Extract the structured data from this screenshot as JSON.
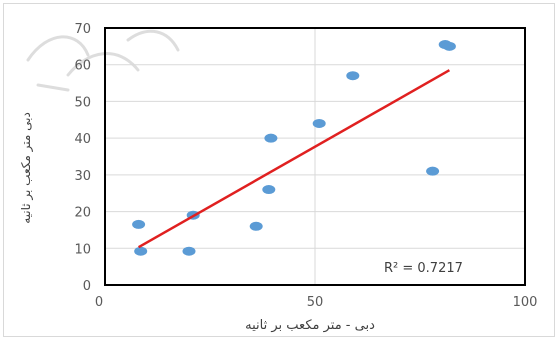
{
  "chart_data": {
    "type": "scatter",
    "xlabel": "دبی - متر مکعب بر ثانیه",
    "ylabel": "دبی متر مکعب بر ثانیه",
    "xlim": [
      0,
      100
    ],
    "ylim": [
      0,
      70
    ],
    "x_ticks": [
      "0",
      "50",
      "100"
    ],
    "y_ticks": [
      "0",
      "10",
      "20",
      "30",
      "40",
      "50",
      "60",
      "70"
    ],
    "grid": true,
    "points": [
      {
        "x": 8,
        "y": 16.5
      },
      {
        "x": 8.5,
        "y": 9.2
      },
      {
        "x": 20,
        "y": 9.2
      },
      {
        "x": 21,
        "y": 19
      },
      {
        "x": 36,
        "y": 16
      },
      {
        "x": 39,
        "y": 26
      },
      {
        "x": 39.5,
        "y": 40
      },
      {
        "x": 51,
        "y": 44
      },
      {
        "x": 59,
        "y": 57
      },
      {
        "x": 78,
        "y": 31
      },
      {
        "x": 81,
        "y": 65.5
      },
      {
        "x": 82,
        "y": 65
      }
    ],
    "trendline": {
      "x": [
        8,
        82
      ],
      "y": [
        10.3,
        58.5
      ]
    },
    "annotation": "R² = 0.7217",
    "colors": {
      "points": "#5b9bd5",
      "trendline": "#e02020",
      "axis": "#000000",
      "grid": "#d9d9d9",
      "ticks": "#595959"
    }
  }
}
